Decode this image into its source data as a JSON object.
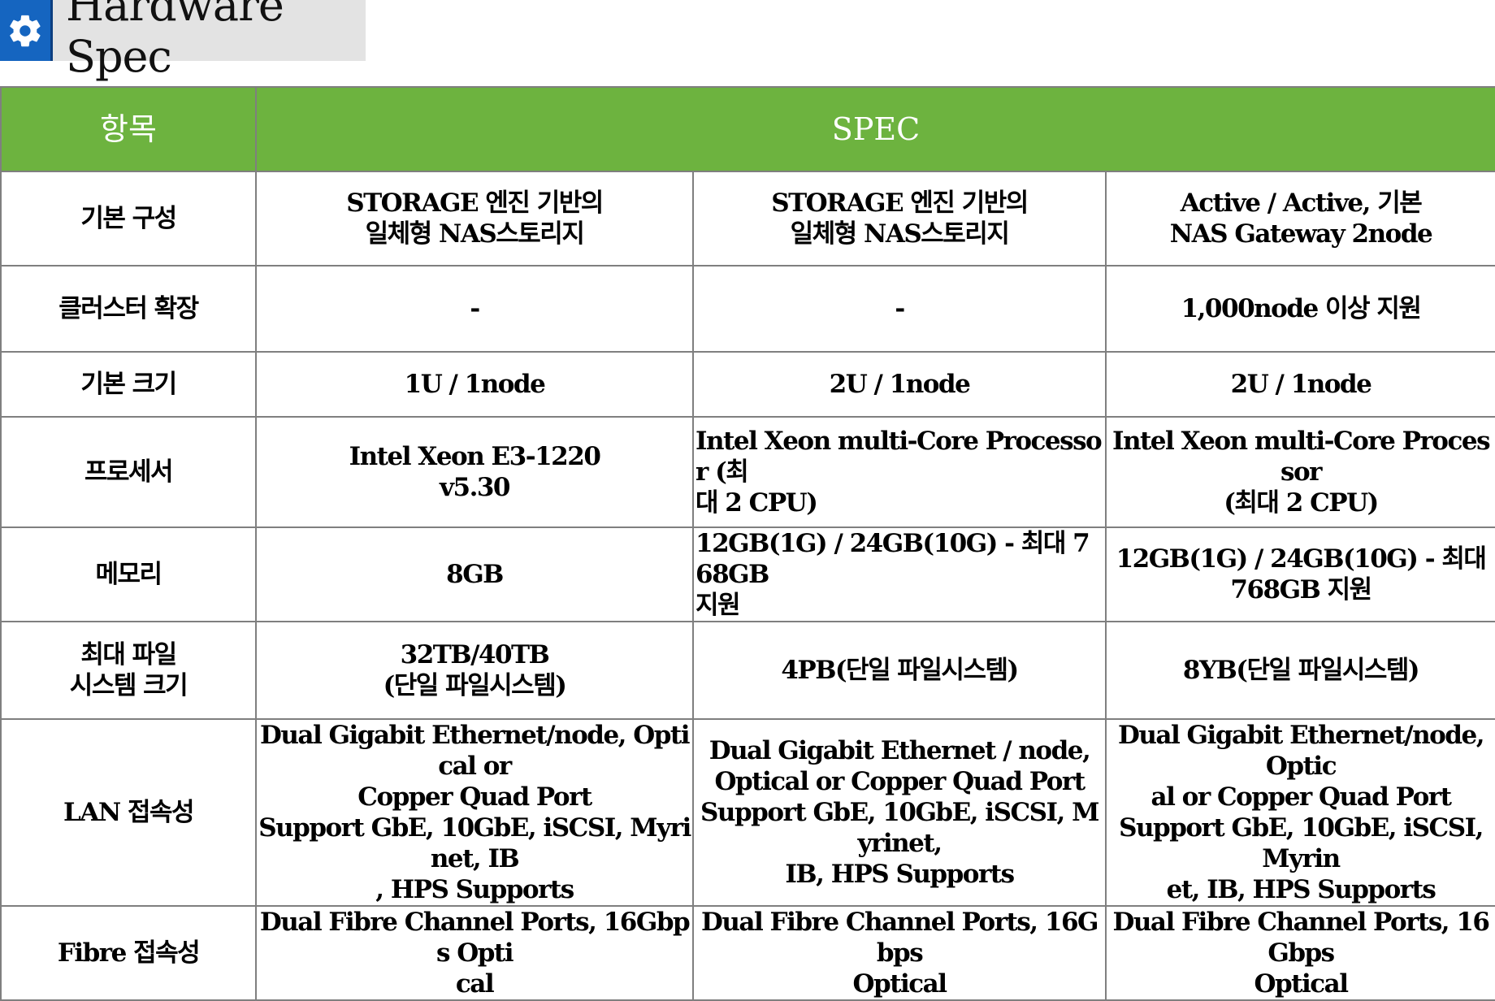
{
  "header": {
    "title": "Hardware Spec",
    "icon": "gear-icon",
    "accent_color": "#1565c0"
  },
  "table": {
    "header_color": "#6db33f",
    "columns": [
      "항목",
      "SPEC"
    ],
    "rows": [
      {
        "label": [
          "기본 구성"
        ],
        "cells": [
          [
            "STORAGE 엔진 기반의",
            "일체형 NAS스토리지"
          ],
          [
            "STORAGE 엔진 기반의",
            "일체형 NAS스토리지"
          ],
          [
            "Active / Active, 기본",
            "NAS Gateway 2node"
          ]
        ]
      },
      {
        "label": [
          "클러스터 확장"
        ],
        "cells": [
          [
            "-"
          ],
          [
            "-"
          ],
          [
            "1,000node 이상 지원"
          ]
        ]
      },
      {
        "label": [
          "기본 크기"
        ],
        "cells": [
          [
            "1U / 1node"
          ],
          [
            "2U / 1node"
          ],
          [
            "2U / 1node"
          ]
        ]
      },
      {
        "label": [
          "프로세서"
        ],
        "cells": [
          [
            "Intel Xeon E3-1220",
            "v5.30"
          ],
          [
            "Intel Xeon multi-Core Processor (최",
            "대 2 CPU)"
          ],
          [
            "Intel Xeon multi-Core Processor",
            "(최대 2 CPU)"
          ]
        ]
      },
      {
        "label": [
          "메모리"
        ],
        "cells": [
          [
            "8GB"
          ],
          [
            "12GB(1G) / 24GB(10G) - 최대 768GB",
            "지원"
          ],
          [
            "12GB(1G) / 24GB(10G) - 최대",
            "768GB 지원"
          ]
        ]
      },
      {
        "label": [
          "최대 파일",
          "시스템 크기"
        ],
        "cells": [
          [
            "32TB/40TB",
            "(단일 파일시스템)"
          ],
          [
            "4PB(단일 파일시스템)"
          ],
          [
            "8YB(단일 파일시스템)"
          ]
        ]
      },
      {
        "label": [
          "LAN 접속성"
        ],
        "cells": [
          [
            "Dual Gigabit Ethernet/node, Optical or",
            "Copper Quad Port",
            "Support GbE, 10GbE, iSCSI, Myrinet, IB",
            ", HPS Supports"
          ],
          [
            "Dual Gigabit Ethernet / node,",
            "Optical or Copper Quad Port",
            "Support GbE, 10GbE, iSCSI, Myrinet,",
            "IB, HPS Supports"
          ],
          [
            "Dual Gigabit Ethernet/node, Optic",
            "al or Copper Quad Port",
            "Support GbE, 10GbE, iSCSI, Myrin",
            "et, IB, HPS Supports"
          ]
        ]
      },
      {
        "label": [
          "Fibre 접속성"
        ],
        "cells": [
          [
            "Dual Fibre Channel Ports, 16Gbps Opti",
            "cal"
          ],
          [
            "Dual Fibre Channel Ports, 16Gbps",
            "Optical"
          ],
          [
            "Dual Fibre Channel Ports, 16Gbps",
            "Optical"
          ]
        ]
      }
    ]
  }
}
